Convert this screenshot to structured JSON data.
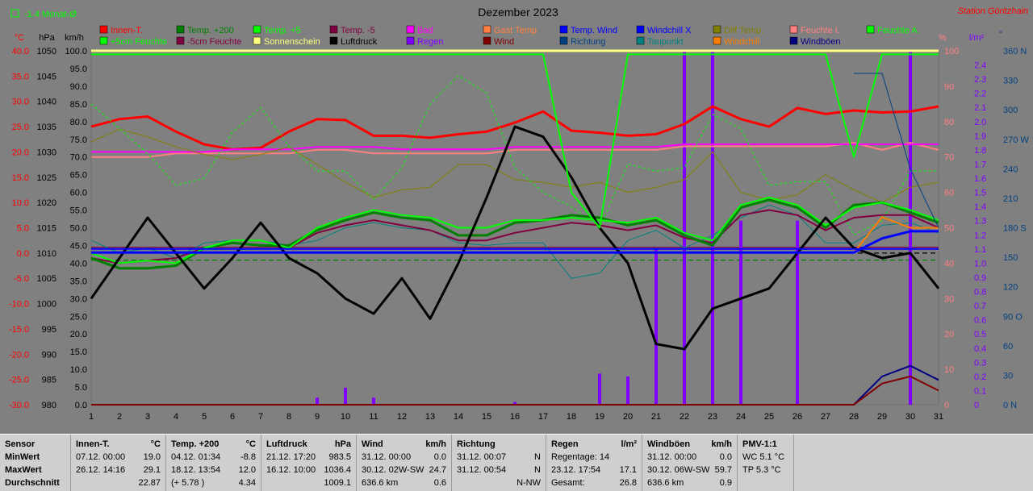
{
  "header": {
    "title": "Dezember 2023",
    "station": "Station Göritzhain",
    "avg_label": "-1.4 Monat-Ø",
    "unit_c": "°C",
    "unit_hpa": "hPa",
    "unit_kmh": "km/h",
    "unit_pct": "%",
    "unit_lm2": "l/m²",
    "unit_deg": "°"
  },
  "legend": [
    {
      "label": "Innen-T.",
      "color": "#ff0000"
    },
    {
      "label": "Temp. +200",
      "color": "#008000"
    },
    {
      "label": "Temp. +5",
      "color": "#00ff00"
    },
    {
      "label": "Temp. -5",
      "color": "#800040"
    },
    {
      "label": "Bad",
      "color": "#ff00ff"
    },
    {
      "label": "Gast Temp",
      "color": "#ff8040"
    },
    {
      "label": "Temp. Wind",
      "color": "#0000ff"
    },
    {
      "label": "Windchill X",
      "color": "#0000ff"
    },
    {
      "label": "Diff Temp.",
      "color": "#808000"
    },
    {
      "label": "Feuchte I.",
      "color": "#ff8080"
    },
    {
      "label": "Feuchte A.",
      "color": "#00ff00"
    },
    {
      "label": "+5cm Feuchte",
      "color": "#00ff00"
    },
    {
      "label": "-5cm Feuchte",
      "color": "#800040"
    },
    {
      "label": "Sonnenschein",
      "color": "#ffff80"
    },
    {
      "label": "Luftdruck",
      "color": "#000000"
    },
    {
      "label": "Regen",
      "color": "#8000ff"
    },
    {
      "label": "Wind",
      "color": "#800000"
    },
    {
      "label": "Richtung",
      "color": "#004080"
    },
    {
      "label": "Taupunkt",
      "color": "#008080"
    },
    {
      "label": "Windchill",
      "color": "#ff8000"
    },
    {
      "label": "Windböen",
      "color": "#000080"
    }
  ],
  "chart_data": {
    "type": "line",
    "x": [
      1,
      2,
      3,
      4,
      5,
      6,
      7,
      8,
      9,
      10,
      11,
      12,
      13,
      14,
      15,
      16,
      17,
      18,
      19,
      20,
      21,
      22,
      23,
      24,
      25,
      26,
      27,
      28,
      29,
      30,
      31
    ],
    "axes": {
      "temp_c": {
        "ticks": [
          "40.0",
          "35.0",
          "30.0",
          "25.0",
          "20.0",
          "15.0",
          "10.0",
          "5.0",
          "0.0",
          "-5.0",
          "-10.0",
          "-15.0",
          "-20.0",
          "-25.0",
          "-30.0"
        ],
        "range": [
          -30,
          40
        ]
      },
      "hpa": {
        "ticks": [
          "1050",
          "1045",
          "1040",
          "1035",
          "1030",
          "1025",
          "1020",
          "1015",
          "1010",
          "1005",
          "1000",
          "995",
          "990",
          "985",
          "980"
        ],
        "range": [
          980,
          1050
        ]
      },
      "kmh": {
        "ticks": [
          "100.0",
          "95.0",
          "90.0",
          "85.0",
          "80.0",
          "75.0",
          "70.0",
          "65.0",
          "60.0",
          "55.0",
          "50.0",
          "45.0",
          "40.0",
          "35.0",
          "30.0",
          "25.0",
          "20.0",
          "15.0",
          "10.0",
          "5.0",
          "0.0"
        ],
        "range": [
          0,
          100
        ]
      },
      "pct": {
        "ticks": [
          "100",
          "90",
          "80",
          "70",
          "60",
          "50",
          "40",
          "30",
          "20",
          "10",
          "0"
        ],
        "range": [
          0,
          100
        ]
      },
      "lm2": {
        "ticks": [
          "2.4",
          "2.3",
          "2.2",
          "2.1",
          "2.0",
          "1.9",
          "1.8",
          "1.7",
          "1.6",
          "1.5",
          "1.4",
          "1.3",
          "1.2",
          "1.1",
          "1.0",
          "0.9",
          "0.8",
          "0.7",
          "0.6",
          "0.5",
          "0.4",
          "0.3",
          "0.2",
          "0.1",
          "0"
        ],
        "range": [
          0,
          2.5
        ]
      },
      "deg": {
        "ticks": [
          "360 N",
          "330",
          "300",
          "270 W",
          "240",
          "210",
          "180 S",
          "150",
          "120",
          "90 O",
          "60",
          "30",
          "0 N"
        ],
        "range": [
          0,
          360
        ]
      }
    },
    "series": [
      {
        "name": "Innen-T.",
        "color": "#ff0000",
        "width": 3,
        "axis": "temp_c",
        "values": [
          25,
          26.5,
          27,
          24,
          21.5,
          20.5,
          20.8,
          24,
          26.5,
          26.3,
          23.2,
          23.2,
          22.8,
          23.5,
          24,
          25.8,
          28,
          24.2,
          23.8,
          23.2,
          23.5,
          25.5,
          29,
          26.5,
          25,
          28.7,
          27.5,
          28.2,
          27.8,
          28,
          29
        ]
      },
      {
        "name": "Feuchte I.",
        "color": "#ff8080",
        "width": 2,
        "axis": "pct",
        "values": [
          70,
          70,
          70,
          71,
          71,
          71,
          71,
          71,
          72,
          72,
          71,
          71,
          71,
          71,
          71,
          72,
          72,
          72,
          72,
          72,
          72,
          73,
          73,
          73,
          73,
          73,
          73,
          74,
          72,
          74,
          72
        ]
      },
      {
        "name": "Bad",
        "color": "#ff00ff",
        "width": 2,
        "axis": "temp_c",
        "values": [
          20,
          20,
          20,
          20,
          20,
          20.5,
          20.5,
          20.5,
          21,
          21,
          21,
          20.5,
          20.5,
          20.5,
          20.5,
          21,
          21,
          21,
          21,
          21,
          21,
          21.5,
          21.5,
          21.5,
          21.5,
          21.5,
          21.5,
          21.5,
          21.5,
          21.5,
          21.5
        ]
      },
      {
        "name": "Diff Temp.",
        "color": "#808000",
        "width": 1,
        "axis": "temp_c",
        "values": [
          22,
          24.5,
          23,
          21,
          19.5,
          18.5,
          19.5,
          21,
          17.5,
          14,
          11,
          12.5,
          13,
          17.5,
          17.5,
          14.5,
          14,
          13,
          14,
          12,
          13,
          14.5,
          20,
          12,
          10.5,
          11.5,
          15.5,
          12.5,
          10,
          13,
          14
        ]
      },
      {
        "name": "+5cm Feuchte",
        "color": "#00ff00",
        "width": 1,
        "dash": "3,3",
        "axis": "pct",
        "values": [
          85,
          78,
          71,
          62,
          64,
          77,
          84,
          73,
          66,
          66,
          58,
          67,
          85,
          93,
          88,
          67,
          60,
          56,
          50,
          68,
          66,
          67,
          82,
          78,
          62,
          63,
          63,
          48,
          52,
          66,
          66
        ]
      },
      {
        "name": "Taupunkt",
        "color": "#008080",
        "width": 1,
        "axis": "temp_c",
        "values": [
          2.5,
          0,
          1,
          -1,
          2,
          2.5,
          2.5,
          1.5,
          2.5,
          5,
          6,
          5,
          4.5,
          2,
          1.5,
          2,
          2,
          -5,
          -4,
          2.5,
          4.5,
          1,
          3.5,
          7,
          9.5,
          7.5,
          2,
          2,
          5.5,
          6,
          4
        ]
      },
      {
        "name": "Temp. -5",
        "color": "#800040",
        "width": 2,
        "axis": "temp_c",
        "values": [
          -1,
          -2,
          -1.5,
          -1,
          1,
          2,
          1.5,
          1,
          4,
          5.5,
          6.5,
          5.5,
          4.5,
          2.5,
          2.5,
          4,
          5,
          6,
          5.5,
          4.5,
          5.5,
          3,
          2,
          7.5,
          8.5,
          7.5,
          4.5,
          7,
          7.5,
          7.5,
          5
        ]
      },
      {
        "name": "Temp. +200",
        "color": "#008000",
        "width": 3,
        "axis": "temp_c",
        "values": [
          -1,
          -3,
          -3,
          -2.5,
          1,
          2,
          1.5,
          1.5,
          4.5,
          6.5,
          8,
          7,
          6.5,
          3.5,
          3.5,
          6,
          6.5,
          7.5,
          7,
          5.5,
          6.5,
          3.5,
          1.5,
          9,
          10.5,
          9,
          5,
          9.5,
          10,
          8,
          6
        ]
      },
      {
        "name": "Temp. +5",
        "color": "#00ff00",
        "width": 2,
        "axis": "temp_c",
        "values": [
          0,
          -2,
          -1.5,
          -2,
          1,
          2.5,
          2.5,
          1,
          5,
          7,
          8.5,
          7.5,
          7,
          5,
          5,
          6.5,
          6.5,
          7,
          6.5,
          6,
          7,
          4,
          2.5,
          9.5,
          11,
          9.5,
          5.5,
          9,
          10,
          8.5,
          6.5
        ]
      },
      {
        "name": "Luftdruck",
        "color": "#000000",
        "width": 3,
        "axis": "hpa",
        "values": [
          1001,
          1009,
          1017,
          1010,
          1003,
          1009,
          1016,
          1009,
          1006,
          1001,
          998,
          1005,
          997,
          1008,
          1021,
          1035,
          1033,
          1025,
          1015,
          1008,
          992,
          991,
          999,
          1001,
          1003,
          1010,
          1017,
          1011,
          1009,
          1010,
          1003
        ]
      },
      {
        "name": "Feuchte A.",
        "color": "#00ff00",
        "width": 2,
        "axis": "pct",
        "values": [
          99,
          99,
          99,
          99,
          99,
          99,
          99,
          99,
          99,
          99,
          99,
          99,
          99,
          99,
          99,
          99,
          99,
          60,
          50,
          99,
          99,
          99,
          99,
          99,
          99,
          99,
          99,
          70,
          99,
          99,
          99
        ]
      },
      {
        "name": "Windchill",
        "color": "#ff8000",
        "width": 2,
        "axis": "kmh",
        "values": [
          43,
          43,
          43,
          43,
          43,
          43,
          43,
          43,
          43,
          43,
          43,
          43,
          43,
          43,
          43,
          43,
          43,
          43,
          43,
          43,
          43,
          43,
          43,
          43,
          43,
          43,
          43,
          43,
          53,
          50,
          50
        ]
      },
      {
        "name": "Temp. Wind",
        "color": "#0000ff",
        "width": 3,
        "axis": "kmh",
        "values": [
          43,
          43,
          43,
          43,
          43,
          43,
          43,
          43,
          43,
          43,
          43,
          43,
          43,
          43,
          43,
          43,
          43,
          43,
          43,
          43,
          43,
          43,
          43,
          43,
          43,
          43,
          43,
          43,
          47,
          49,
          49
        ]
      },
      {
        "name": "Windchill X",
        "color": "#0000ff",
        "width": 2,
        "axis": "kmh",
        "values": [
          44,
          44,
          44,
          44,
          44,
          44,
          44,
          44,
          44,
          44,
          44,
          44,
          44,
          44,
          44,
          44,
          44,
          44,
          44,
          44,
          44,
          44,
          44,
          44,
          44,
          44,
          44,
          44,
          44,
          44,
          44
        ]
      },
      {
        "name": "Richtung",
        "color": "#004080",
        "width": 1,
        "axis": "deg",
        "values": [
          null,
          null,
          null,
          null,
          null,
          null,
          null,
          null,
          null,
          null,
          null,
          null,
          null,
          null,
          null,
          null,
          null,
          null,
          null,
          null,
          null,
          null,
          null,
          null,
          null,
          null,
          null,
          337,
          337,
          240,
          180
        ]
      },
      {
        "name": "Windböen",
        "color": "#000080",
        "width": 2,
        "axis": "kmh",
        "values": [
          null,
          null,
          null,
          null,
          null,
          null,
          null,
          null,
          null,
          null,
          null,
          null,
          null,
          null,
          null,
          null,
          null,
          null,
          null,
          null,
          null,
          null,
          null,
          null,
          null,
          null,
          null,
          0,
          8,
          11,
          7
        ]
      },
      {
        "name": "Wind",
        "color": "#800000",
        "width": 2,
        "axis": "kmh",
        "values": [
          0,
          0,
          0,
          0,
          0,
          0,
          0,
          0,
          0,
          0,
          0,
          0,
          0,
          0,
          0,
          0,
          0,
          0,
          0,
          0,
          0,
          0,
          0,
          0,
          0,
          0,
          0,
          0,
          6,
          8,
          4
        ]
      },
      {
        "name": "Sonnenschein",
        "color": "#ffff80",
        "width": 3,
        "axis": "pct",
        "values": [
          100,
          100,
          100,
          100,
          100,
          100,
          100,
          100,
          100,
          100,
          100,
          100,
          100,
          100,
          100,
          100,
          100,
          100,
          100,
          100,
          100,
          100,
          100,
          100,
          100,
          100,
          100,
          100,
          100,
          100,
          100
        ]
      }
    ],
    "rain": {
      "name": "Regen",
      "color": "#8000ff",
      "axis": "lm2",
      "values": [
        0,
        0,
        0,
        0,
        0,
        0,
        0,
        0,
        0.05,
        0.12,
        0.05,
        0,
        0,
        0,
        0,
        0.02,
        0,
        0,
        0.22,
        0.2,
        1.1,
        2.5,
        2.5,
        1.3,
        0,
        1.3,
        0,
        0,
        0,
        2.5,
        0
      ]
    },
    "ref_lines": [
      {
        "axis": "temp_c",
        "value": 0,
        "color": "#000000",
        "dash": "6,4"
      },
      {
        "axis": "temp_c",
        "value": -1.4,
        "color": "#008000",
        "dash": "6,4"
      },
      {
        "axis": "kmh",
        "value": 44.5,
        "color": "#800040",
        "dash": ""
      }
    ]
  },
  "panel": {
    "labels": {
      "h": "Sensor",
      "r1": "MinWert",
      "r2": "MaxWert",
      "r3": "Durchschnitt"
    },
    "cards": [
      {
        "title": "Innen-T.",
        "unit": "°C",
        "r1a": "07.12.  00:00",
        "r1b": "19.0",
        "r2a": "26.12.  14:16",
        "r2b": "29.1",
        "r3a": "",
        "r3b": "22.87"
      },
      {
        "title": "Temp. +200",
        "unit": "°C",
        "r1a": "04.12.  01:34",
        "r1b": "-8.8",
        "r2a": "18.12.  13:54",
        "r2b": "12.0",
        "r3a": "(+ 5.78 )",
        "r3b": "4.34"
      },
      {
        "title": "Luftdruck",
        "unit": "hPa",
        "r1a": "21.12.  17:20",
        "r1b": "983.5",
        "r2a": "16.12.  10:00",
        "r2b": "1036.4",
        "r3a": "",
        "r3b": "1009.1"
      },
      {
        "title": "Wind",
        "unit": "km/h",
        "r1a": "31.12.  00:00",
        "r1b": "0.0",
        "r2a": "30.12.  02W-SW",
        "r2b": "24.7",
        "r3a": "636.6 km",
        "r3b": "0.6"
      },
      {
        "title": "Richtung",
        "unit": "",
        "r1a": "31.12.  00:07",
        "r1b": "N",
        "r2a": "31.12.  00:54",
        "r2b": "N",
        "r3a": "",
        "r3b": "N-NW"
      },
      {
        "title": "Regen",
        "unit": "l/m²",
        "r1a": "Regentage: 14",
        "r1b": "",
        "r2a": "23.12.  17:54",
        "r2b": "17.1",
        "r3a": "Gesamt:",
        "r3b": "26.8"
      },
      {
        "title": "Windböen",
        "unit": "km/h",
        "r1a": "31.12.  00:00",
        "r1b": "0.0",
        "r2a": "30.12.  06W-SW",
        "r2b": "59.7",
        "r3a": "636.6 km",
        "r3b": "0.9"
      },
      {
        "title": "PMV-1:1",
        "unit": "",
        "r1a": "WC 5.1 °C",
        "r1b": "",
        "r2a": "TP 5.3 °C",
        "r2b": "",
        "r3a": "",
        "r3b": ""
      }
    ]
  }
}
